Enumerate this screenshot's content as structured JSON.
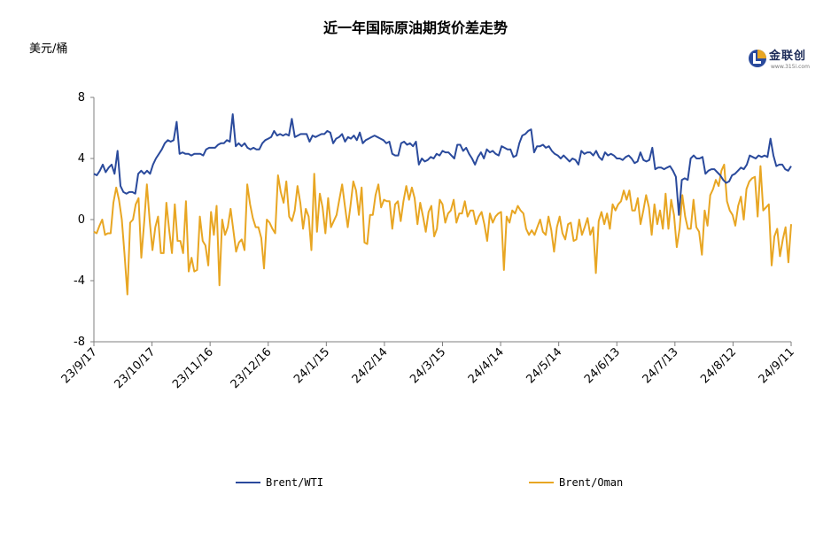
{
  "colors": {
    "wti": "#2a4a9c",
    "oman": "#e8a623",
    "axis": "#7f7f7f"
  },
  "logo": {
    "brand": "金联创",
    "site": "www.315i.com"
  },
  "chart_data": {
    "type": "line",
    "title": "近一年国际原油期货价差走势",
    "ylabel": "美元/桶",
    "ylim": [
      -8,
      8
    ],
    "yticks": [
      8,
      4,
      0,
      -4,
      -8
    ],
    "xlim": [
      "2023-09-17",
      "2024-09-11"
    ],
    "xticks": [
      "23/9/17",
      "23/10/17",
      "23/11/16",
      "23/12/16",
      "24/1/15",
      "24/2/14",
      "24/3/15",
      "24/4/14",
      "24/5/14",
      "24/6/13",
      "24/7/13",
      "24/8/12",
      "24/9/11"
    ],
    "legend_position": "bottom",
    "series": [
      {
        "name": "Brent/WTI",
        "color_key": "wti",
        "values": [
          3.0,
          2.9,
          3.2,
          3.6,
          3.1,
          3.4,
          3.6,
          3.0,
          4.5,
          2.2,
          1.8,
          1.7,
          1.8,
          1.8,
          1.7,
          3.0,
          3.2,
          3.0,
          3.2,
          3.0,
          3.6,
          4.0,
          4.3,
          4.6,
          5.0,
          5.2,
          5.1,
          5.2,
          6.4,
          4.3,
          4.4,
          4.3,
          4.3,
          4.2,
          4.3,
          4.3,
          4.3,
          4.2,
          4.6,
          4.7,
          4.7,
          4.7,
          4.9,
          5.0,
          5.0,
          5.2,
          5.1,
          6.9,
          4.8,
          5.0,
          4.8,
          5.0,
          4.7,
          4.6,
          4.7,
          4.6,
          4.6,
          5.0,
          5.2,
          5.3,
          5.4,
          5.8,
          5.5,
          5.6,
          5.5,
          5.6,
          5.5,
          6.6,
          5.4,
          5.5,
          5.6,
          5.6,
          5.6,
          5.1,
          5.5,
          5.4,
          5.5,
          5.6,
          5.6,
          5.8,
          5.7,
          5.0,
          5.3,
          5.4,
          5.6,
          5.1,
          5.4,
          5.3,
          5.5,
          5.2,
          5.7,
          5.0,
          5.2,
          5.3,
          5.4,
          5.5,
          5.4,
          5.3,
          5.2,
          5.0,
          5.1,
          4.3,
          4.2,
          4.2,
          5.0,
          5.1,
          4.9,
          5.0,
          4.8,
          5.1,
          3.6,
          4.0,
          3.8,
          3.9,
          4.1,
          4.0,
          4.3,
          4.2,
          4.5,
          4.4,
          4.4,
          4.2,
          4.0,
          4.9,
          4.9,
          4.5,
          4.7,
          4.3,
          4.0,
          3.6,
          4.1,
          4.4,
          4.0,
          4.6,
          4.4,
          4.5,
          4.3,
          4.2,
          4.8,
          4.7,
          4.6,
          4.6,
          4.1,
          4.2,
          5.0,
          5.5,
          5.6,
          5.8,
          5.9,
          4.4,
          4.8,
          4.8,
          4.9,
          4.7,
          4.8,
          4.5,
          4.3,
          4.2,
          4.0,
          4.2,
          4.0,
          3.8,
          4.0,
          3.9,
          3.6,
          4.5,
          4.3,
          4.4,
          4.4,
          4.2,
          4.5,
          4.1,
          3.9,
          4.4,
          4.2,
          4.3,
          4.2,
          4.0,
          4.0,
          3.9,
          4.1,
          4.2,
          4.0,
          3.7,
          3.8,
          4.4,
          3.9,
          3.8,
          3.9,
          4.7,
          3.3,
          3.4,
          3.4,
          3.3,
          3.4,
          3.5,
          3.2,
          2.8,
          0.3,
          2.6,
          2.7,
          2.6,
          4.0,
          4.2,
          4.0,
          4.0,
          4.1,
          3.0,
          3.2,
          3.3,
          3.3,
          3.1,
          2.9,
          2.6,
          2.4,
          2.5,
          2.9,
          3.0,
          3.2,
          3.4,
          3.3,
          3.6,
          4.2,
          4.1,
          4.0,
          4.2,
          4.1,
          4.2,
          4.1,
          5.3,
          4.2,
          3.5,
          3.6,
          3.6,
          3.3,
          3.2,
          3.5
        ]
      },
      {
        "name": "Brent/Oman",
        "color_key": "oman",
        "values": [
          -0.8,
          -0.9,
          -0.4,
          0.0,
          -1.0,
          -0.9,
          -0.9,
          1.1,
          2.1,
          1.3,
          0.0,
          -2.3,
          -4.9,
          -0.2,
          0.0,
          1.0,
          1.4,
          -2.5,
          -0.2,
          2.3,
          -0.1,
          -2.0,
          -0.5,
          0.2,
          -2.2,
          -2.2,
          1.1,
          -0.7,
          -2.2,
          1.0,
          -1.4,
          -1.4,
          -2.2,
          1.2,
          -3.4,
          -2.5,
          -3.4,
          -3.3,
          0.2,
          -1.4,
          -1.7,
          -3.0,
          0.5,
          -1.0,
          0.9,
          -4.3,
          0.0,
          -1.0,
          -0.5,
          0.7,
          -0.7,
          -2.1,
          -1.5,
          -1.3,
          -2.0,
          2.3,
          1.0,
          0.1,
          -0.5,
          -0.5,
          -1.2,
          -3.2,
          0.0,
          -0.2,
          -0.6,
          -0.9,
          2.9,
          1.8,
          1.1,
          2.5,
          0.2,
          -0.1,
          0.6,
          2.2,
          1.1,
          -0.6,
          0.7,
          0.2,
          -2.0,
          3.0,
          -0.8,
          1.7,
          0.8,
          -0.9,
          1.4,
          -0.5,
          -0.1,
          0.3,
          1.3,
          2.3,
          0.9,
          -0.5,
          0.9,
          2.5,
          1.9,
          0.3,
          2.1,
          -1.5,
          -1.6,
          0.3,
          0.3,
          1.6,
          2.3,
          0.8,
          1.3,
          1.2,
          1.2,
          -0.6,
          1.0,
          1.2,
          -0.1,
          1.2,
          2.2,
          1.3,
          2.1,
          1.4,
          -0.3,
          1.1,
          0.2,
          -0.8,
          0.5,
          0.9,
          -1.1,
          -0.6,
          1.3,
          1.0,
          -0.2,
          0.4,
          0.6,
          1.3,
          -0.2,
          0.4,
          0.4,
          1.2,
          0.2,
          0.6,
          0.6,
          -0.3,
          0.2,
          0.5,
          -0.3,
          -1.4,
          0.4,
          -0.2,
          0.2,
          0.4,
          0.5,
          -3.3,
          0.2,
          -0.2,
          0.6,
          0.4,
          0.9,
          0.6,
          0.4,
          -0.6,
          -1.0,
          -0.7,
          -1.0,
          -0.5,
          0.0,
          -0.8,
          -1.0,
          0.2,
          -0.7,
          -2.1,
          -0.5,
          0.2,
          -0.9,
          -1.3,
          -0.3,
          -0.2,
          -1.4,
          -1.3,
          0.0,
          -1.0,
          -0.5,
          0.1,
          -1.0,
          -0.5,
          -3.5,
          -0.1,
          0.5,
          -0.3,
          0.4,
          -0.6,
          1.0,
          0.6,
          1.0,
          1.2,
          1.9,
          1.3,
          1.9,
          0.6,
          0.6,
          1.4,
          -0.3,
          0.6,
          1.6,
          0.8,
          -1.0,
          1.0,
          -0.3,
          0.6,
          -0.6,
          1.7,
          -0.6,
          1.3,
          0.3,
          -1.8,
          -0.6,
          1.6,
          0.2,
          -0.6,
          -0.6,
          1.3,
          -0.5,
          -0.8,
          -2.3,
          0.6,
          -0.4,
          1.6,
          2.0,
          2.6,
          2.2,
          3.2,
          3.6,
          1.2,
          0.6,
          0.3,
          -0.4,
          0.9,
          1.5,
          0.0,
          2.0,
          2.5,
          2.7,
          2.8,
          0.2,
          3.5,
          0.6,
          0.8,
          1.0,
          -3.0,
          -1.1,
          -0.6,
          -2.4,
          -1.3,
          -0.5,
          -2.8,
          -0.3
        ]
      }
    ]
  }
}
